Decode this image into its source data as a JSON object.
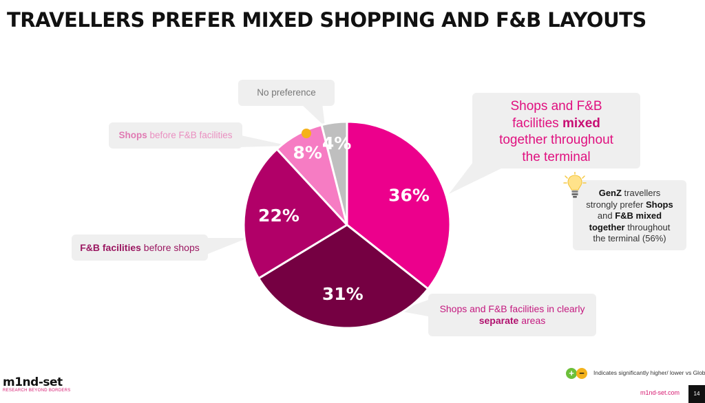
{
  "title": "TRAVELLERS PREFER MIXED SHOPPING AND F&B LAYOUTS",
  "chart_data": {
    "type": "pie",
    "slices": [
      {
        "label": "Shops and F&B facilities mixed together throughout the terminal",
        "value": 36,
        "display": "36%",
        "color": "#ec008c"
      },
      {
        "label": "Shops and F&B facilities in clearly separate areas",
        "value": 31,
        "display": "31%",
        "color": "#750042"
      },
      {
        "label": "F&B facilities before shops",
        "value": 22,
        "display": "22%",
        "color": "#b10068"
      },
      {
        "label": "Shops before F&B facilities",
        "value": 8,
        "display": "8%",
        "color": "#f67cc3"
      },
      {
        "label": "No preference",
        "value": 4,
        "display": "4%",
        "color": "#bfbfbf"
      }
    ],
    "start": "12 o'clock",
    "direction": "clockwise"
  },
  "callouts": {
    "no_preference": "No preference",
    "shops_bold": "Shops",
    "shops_rest": " before F&B facilities",
    "fnb_bold": "F&B facilities",
    "fnb_rest": " before shops",
    "separate_line1": "Shops and F&B facilities in clearly",
    "separate_bold": "separate",
    "separate_rest": " areas",
    "mixed_line1": "Shops and F&B",
    "mixed_line2a": "facilities ",
    "mixed_bold": "mixed",
    "mixed_line3": "together throughout",
    "mixed_line4": "the terminal"
  },
  "insight": {
    "bold1": "GenZ",
    "text1": " travellers",
    "text2": "strongly prefer ",
    "bold2": "Shops",
    "text3": "and ",
    "bold3": "F&B mixed",
    "bold4": "together",
    "text4": " throughout",
    "text5": "the terminal (56%)",
    "icon": "lightbulb-icon"
  },
  "legend": {
    "plus": "+",
    "minus": "−",
    "text": "Indicates significantly  higher/ lower vs Globa"
  },
  "logo": {
    "word": "m1nd-set",
    "tagline": "RESEARCH BEYOND BORDERS"
  },
  "footer": {
    "url": "m1nd-set.com",
    "page": "14"
  }
}
